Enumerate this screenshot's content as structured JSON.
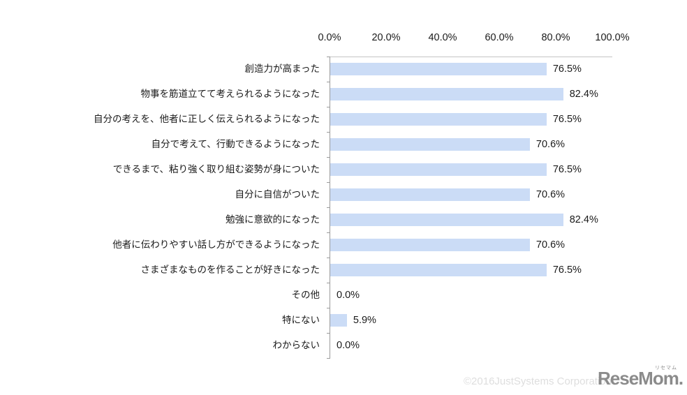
{
  "chart_data": {
    "type": "bar",
    "orientation": "horizontal",
    "title": "",
    "xlabel": "",
    "ylabel": "",
    "xlim": [
      0,
      100
    ],
    "grid": false,
    "legend": false,
    "bar_color": "#cbdcf6",
    "axis_color": "#9a9a9a",
    "x_ticks": [
      "0.0%",
      "20.0%",
      "40.0%",
      "60.0%",
      "80.0%",
      "100.0%"
    ],
    "categories": [
      "創造力が高まった",
      "物事を筋道立てて考えられるようになった",
      "自分の考えを、他者に正しく伝えられるようになった",
      "自分で考えて、行動できるようになった",
      "できるまで、粘り強く取り組む姿勢が身についた",
      "自分に自信がついた",
      "勉強に意欲的になった",
      "他者に伝わりやすい話し方ができるようになった",
      "さまざまなものを作ることが好きになった",
      "その他",
      "特にない",
      "わからない"
    ],
    "values": [
      76.5,
      82.4,
      76.5,
      70.6,
      76.5,
      70.6,
      82.4,
      70.6,
      76.5,
      0.0,
      5.9,
      0.0
    ],
    "value_labels": [
      "76.5%",
      "82.4%",
      "76.5%",
      "70.6%",
      "76.5%",
      "70.6%",
      "82.4%",
      "70.6%",
      "76.5%",
      "0.0%",
      "5.9%",
      "0.0%"
    ]
  },
  "footer": {
    "watermark": "©2016JustSystems Corporation",
    "logo_text": "ReseMom.",
    "logo_ruby": "リセマム"
  }
}
